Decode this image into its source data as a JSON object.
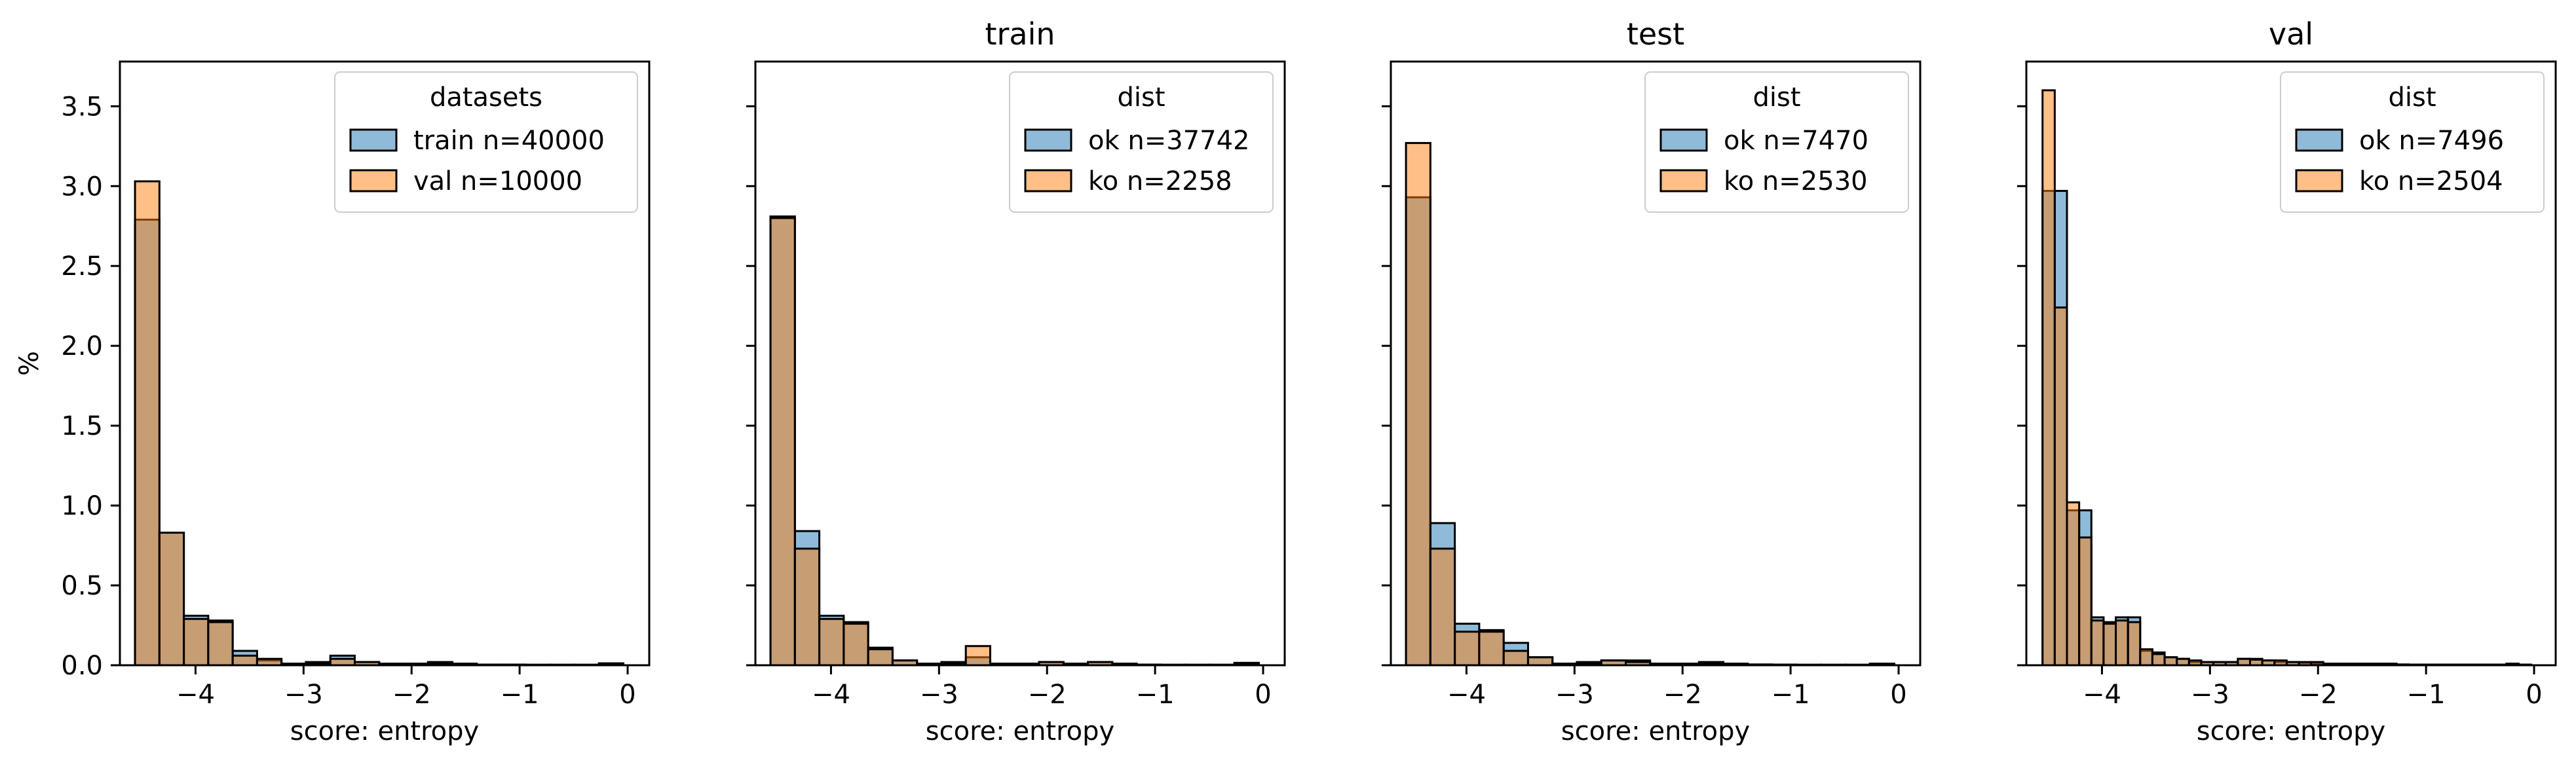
{
  "figure": {
    "ylabel": "%",
    "colors": {
      "blue": "#1f77b4",
      "orange": "#ff7f0e",
      "edge": "#000000"
    }
  },
  "chart_data": [
    {
      "type": "bar",
      "title": "",
      "xlabel": "score: entropy",
      "ylabel": "%",
      "xlim": [
        -4.7,
        0.2
      ],
      "ylim": [
        0,
        3.78
      ],
      "xticks": [
        -4,
        -3,
        -2,
        -1,
        0
      ],
      "xtick_labels": [
        "−4",
        "−3",
        "−2",
        "−1",
        "0"
      ],
      "yticks": [
        0.0,
        0.5,
        1.0,
        1.5,
        2.0,
        2.5,
        3.0,
        3.5
      ],
      "ytick_labels": [
        "0.0",
        "0.5",
        "1.0",
        "1.5",
        "2.0",
        "2.5",
        "3.0",
        "3.5"
      ],
      "legend": {
        "title": "datasets",
        "placement": "top-right"
      },
      "series": [
        {
          "name": "train n=40000",
          "color": "blue",
          "bin_width": 0.226,
          "bins": [
            [
              -4.56,
              2.79
            ],
            [
              -4.334,
              0.83
            ],
            [
              -4.108,
              0.31
            ],
            [
              -3.882,
              0.28
            ],
            [
              -3.656,
              0.09
            ],
            [
              -3.43,
              0.03
            ],
            [
              -3.204,
              0.01
            ],
            [
              -2.978,
              0.02
            ],
            [
              -2.752,
              0.06
            ],
            [
              -2.526,
              0.02
            ],
            [
              -2.3,
              0.01
            ],
            [
              -2.074,
              0.01
            ],
            [
              -1.848,
              0.02
            ],
            [
              -1.622,
              0.01
            ],
            [
              -1.396,
              0.004
            ],
            [
              -1.17,
              0.004
            ],
            [
              -0.944,
              0.003
            ],
            [
              -0.718,
              0.003
            ],
            [
              -0.492,
              0.003
            ],
            [
              -0.266,
              0.012
            ]
          ]
        },
        {
          "name": "val n=10000",
          "color": "orange",
          "bin_width": 0.226,
          "bins": [
            [
              -4.56,
              3.03
            ],
            [
              -4.334,
              0.83
            ],
            [
              -4.108,
              0.29
            ],
            [
              -3.882,
              0.27
            ],
            [
              -3.656,
              0.06
            ],
            [
              -3.43,
              0.04
            ],
            [
              -3.204,
              0.01
            ],
            [
              -2.978,
              0.01
            ],
            [
              -2.752,
              0.04
            ],
            [
              -2.526,
              0.02
            ],
            [
              -2.3,
              0.005
            ],
            [
              -2.074,
              0.01
            ],
            [
              -1.848,
              0.01
            ],
            [
              -1.622,
              0.005
            ],
            [
              -1.396,
              0.003
            ],
            [
              -1.17,
              0.003
            ],
            [
              -0.944,
              0.003
            ],
            [
              -0.718,
              0.003
            ],
            [
              -0.492,
              0.003
            ],
            [
              -0.266,
              0.005
            ]
          ]
        }
      ]
    },
    {
      "type": "bar",
      "title": "train",
      "xlabel": "score: entropy",
      "ylabel": "",
      "xlim": [
        -4.7,
        0.2
      ],
      "ylim": [
        0,
        3.78
      ],
      "xticks": [
        -4,
        -3,
        -2,
        -1,
        0
      ],
      "xtick_labels": [
        "−4",
        "−3",
        "−2",
        "−1",
        "0"
      ],
      "legend": {
        "title": "dist",
        "placement": "top-right"
      },
      "series": [
        {
          "name": "ok n=37742",
          "color": "blue",
          "bin_width": 0.226,
          "bins": [
            [
              -4.56,
              2.81
            ],
            [
              -4.334,
              0.84
            ],
            [
              -4.108,
              0.31
            ],
            [
              -3.882,
              0.27
            ],
            [
              -3.656,
              0.11
            ],
            [
              -3.43,
              0.03
            ],
            [
              -3.204,
              0.01
            ],
            [
              -2.978,
              0.02
            ],
            [
              -2.752,
              0.05
            ],
            [
              -2.526,
              0.01
            ],
            [
              -2.3,
              0.01
            ],
            [
              -2.074,
              0.02
            ],
            [
              -1.848,
              0.01
            ],
            [
              -1.622,
              0.02
            ],
            [
              -1.396,
              0.01
            ],
            [
              -1.17,
              0.004
            ],
            [
              -0.944,
              0.003
            ],
            [
              -0.718,
              0.003
            ],
            [
              -0.492,
              0.003
            ],
            [
              -0.266,
              0.015
            ]
          ]
        },
        {
          "name": "ko n=2258",
          "color": "orange",
          "bin_width": 0.226,
          "bins": [
            [
              -4.56,
              2.8
            ],
            [
              -4.334,
              0.73
            ],
            [
              -4.108,
              0.29
            ],
            [
              -3.882,
              0.26
            ],
            [
              -3.656,
              0.1
            ],
            [
              -3.43,
              0.03
            ],
            [
              -3.204,
              0.01
            ],
            [
              -2.978,
              0.01
            ],
            [
              -2.752,
              0.12
            ],
            [
              -2.526,
              0.01
            ],
            [
              -2.3,
              0.01
            ],
            [
              -2.074,
              0.02
            ],
            [
              -1.848,
              0.01
            ],
            [
              -1.622,
              0.02
            ],
            [
              -1.396,
              0.01
            ],
            [
              -1.17,
              0.003
            ],
            [
              -0.944,
              0.003
            ],
            [
              -0.718,
              0.003
            ],
            [
              -0.492,
              0.003
            ],
            [
              -0.266,
              0.01
            ]
          ]
        }
      ]
    },
    {
      "type": "bar",
      "title": "test",
      "xlabel": "score: entropy",
      "ylabel": "",
      "xlim": [
        -4.7,
        0.2
      ],
      "ylim": [
        0,
        3.78
      ],
      "xticks": [
        -4,
        -3,
        -2,
        -1,
        0
      ],
      "xtick_labels": [
        "−4",
        "−3",
        "−2",
        "−1",
        "0"
      ],
      "legend": {
        "title": "dist",
        "placement": "top-right"
      },
      "series": [
        {
          "name": "ok n=7470",
          "color": "blue",
          "bin_width": 0.226,
          "bins": [
            [
              -4.56,
              2.93
            ],
            [
              -4.334,
              0.89
            ],
            [
              -4.108,
              0.26
            ],
            [
              -3.882,
              0.22
            ],
            [
              -3.656,
              0.14
            ],
            [
              -3.43,
              0.05
            ],
            [
              -3.204,
              0.01
            ],
            [
              -2.978,
              0.02
            ],
            [
              -2.752,
              0.03
            ],
            [
              -2.526,
              0.03
            ],
            [
              -2.3,
              0.01
            ],
            [
              -2.074,
              0.01
            ],
            [
              -1.848,
              0.02
            ],
            [
              -1.622,
              0.01
            ],
            [
              -1.396,
              0.005
            ],
            [
              -1.17,
              0.004
            ],
            [
              -0.944,
              0.003
            ],
            [
              -0.718,
              0.003
            ],
            [
              -0.492,
              0.003
            ],
            [
              -0.266,
              0.01
            ]
          ]
        },
        {
          "name": "ko n=2530",
          "color": "orange",
          "bin_width": 0.226,
          "bins": [
            [
              -4.56,
              3.27
            ],
            [
              -4.334,
              0.73
            ],
            [
              -4.108,
              0.21
            ],
            [
              -3.882,
              0.21
            ],
            [
              -3.656,
              0.09
            ],
            [
              -3.43,
              0.05
            ],
            [
              -3.204,
              0.01
            ],
            [
              -2.978,
              0.01
            ],
            [
              -2.752,
              0.03
            ],
            [
              -2.526,
              0.02
            ],
            [
              -2.3,
              0.01
            ],
            [
              -2.074,
              0.01
            ],
            [
              -1.848,
              0.01
            ],
            [
              -1.622,
              0.005
            ],
            [
              -1.396,
              0.003
            ],
            [
              -1.17,
              0.003
            ],
            [
              -0.944,
              0.003
            ],
            [
              -0.718,
              0.003
            ],
            [
              -0.492,
              0.003
            ],
            [
              -0.266,
              0.005
            ]
          ]
        }
      ]
    },
    {
      "type": "bar",
      "title": "val",
      "xlabel": "score: entropy",
      "ylabel": "",
      "xlim": [
        -4.7,
        0.2
      ],
      "ylim": [
        0,
        3.78
      ],
      "xticks": [
        -4,
        -3,
        -2,
        -1,
        0
      ],
      "xtick_labels": [
        "−4",
        "−3",
        "−2",
        "−1",
        "0"
      ],
      "legend": {
        "title": "dist",
        "placement": "top-right"
      },
      "series": [
        {
          "name": "ok n=7496",
          "color": "blue",
          "bin_width": 0.113,
          "bins": [
            [
              -4.55,
              2.97
            ],
            [
              -4.437,
              2.97
            ],
            [
              -4.324,
              0.97
            ],
            [
              -4.211,
              0.97
            ],
            [
              -4.098,
              0.3
            ],
            [
              -3.985,
              0.27
            ],
            [
              -3.872,
              0.3
            ],
            [
              -3.759,
              0.3
            ],
            [
              -3.646,
              0.09
            ],
            [
              -3.533,
              0.08
            ],
            [
              -3.42,
              0.05
            ],
            [
              -3.307,
              0.04
            ],
            [
              -3.194,
              0.02
            ],
            [
              -3.081,
              0.02
            ],
            [
              -2.968,
              0.02
            ],
            [
              -2.855,
              0.02
            ],
            [
              -2.742,
              0.04
            ],
            [
              -2.629,
              0.04
            ],
            [
              -2.516,
              0.03
            ],
            [
              -2.403,
              0.02
            ],
            [
              -2.29,
              0.02
            ],
            [
              -2.177,
              0.015
            ],
            [
              -2.064,
              0.01
            ],
            [
              -1.951,
              0.01
            ],
            [
              -1.838,
              0.01
            ],
            [
              -1.725,
              0.01
            ],
            [
              -1.612,
              0.01
            ],
            [
              -1.499,
              0.01
            ],
            [
              -1.386,
              0.01
            ],
            [
              -1.273,
              0.005
            ],
            [
              -1.16,
              0.004
            ],
            [
              -1.047,
              0.004
            ],
            [
              -0.934,
              0.004
            ],
            [
              -0.821,
              0.004
            ],
            [
              -0.708,
              0.004
            ],
            [
              -0.595,
              0.004
            ],
            [
              -0.482,
              0.004
            ],
            [
              -0.369,
              0.004
            ],
            [
              -0.256,
              0.01
            ],
            [
              -0.143,
              0.004
            ]
          ]
        },
        {
          "name": "ko n=2504",
          "color": "orange",
          "bin_width": 0.113,
          "bins": [
            [
              -4.55,
              3.6
            ],
            [
              -4.437,
              2.24
            ],
            [
              -4.324,
              1.02
            ],
            [
              -4.211,
              0.8
            ],
            [
              -4.098,
              0.28
            ],
            [
              -3.985,
              0.26
            ],
            [
              -3.872,
              0.28
            ],
            [
              -3.759,
              0.27
            ],
            [
              -3.646,
              0.1
            ],
            [
              -3.533,
              0.07
            ],
            [
              -3.42,
              0.05
            ],
            [
              -3.307,
              0.04
            ],
            [
              -3.194,
              0.03
            ],
            [
              -3.081,
              0.02
            ],
            [
              -2.968,
              0.02
            ],
            [
              -2.855,
              0.02
            ],
            [
              -2.742,
              0.04
            ],
            [
              -2.629,
              0.035
            ],
            [
              -2.516,
              0.03
            ],
            [
              -2.403,
              0.03
            ],
            [
              -2.29,
              0.02
            ],
            [
              -2.177,
              0.02
            ],
            [
              -2.064,
              0.02
            ],
            [
              -1.951,
              0.01
            ],
            [
              -1.838,
              0.01
            ],
            [
              -1.725,
              0.01
            ],
            [
              -1.612,
              0.005
            ],
            [
              -1.499,
              0.005
            ],
            [
              -1.386,
              0.005
            ],
            [
              -1.273,
              0.004
            ],
            [
              -1.16,
              0.004
            ],
            [
              -1.047,
              0.004
            ],
            [
              -0.934,
              0.004
            ],
            [
              -0.821,
              0.004
            ],
            [
              -0.708,
              0.004
            ],
            [
              -0.595,
              0.004
            ],
            [
              -0.482,
              0.004
            ],
            [
              -0.369,
              0.004
            ],
            [
              -0.256,
              0.004
            ],
            [
              -0.143,
              0.004
            ]
          ]
        }
      ]
    }
  ]
}
